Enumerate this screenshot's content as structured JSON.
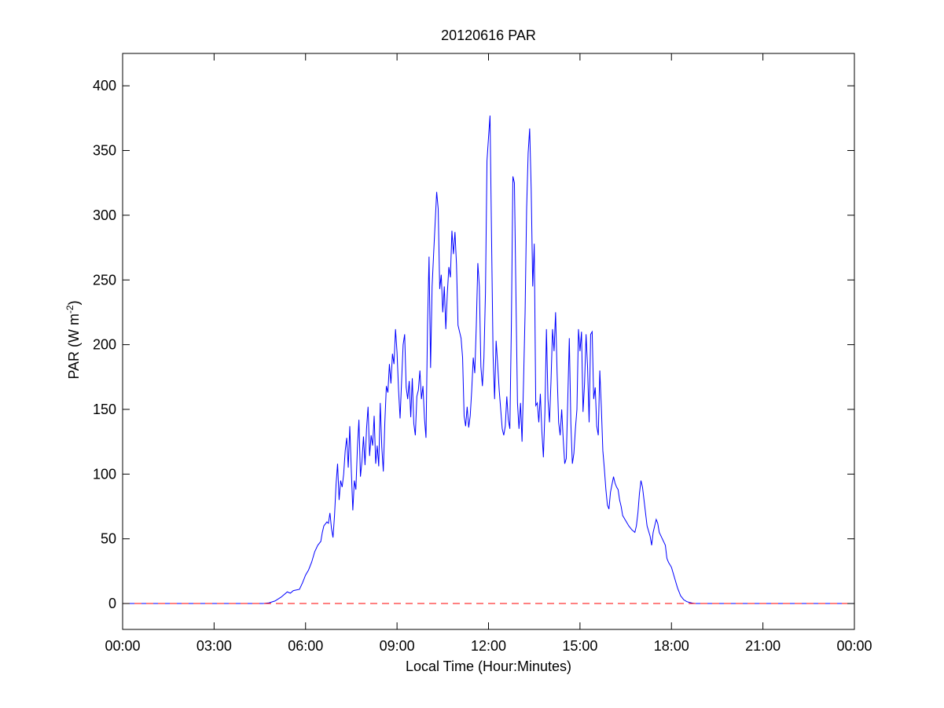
{
  "chart_data": {
    "type": "line",
    "title": "20120616 PAR",
    "xlabel": "Local Time (Hour:Minutes)",
    "ylabel": {
      "base": "PAR (W m",
      "superscript": "-2",
      "close": ")"
    },
    "xlim": [
      0,
      24
    ],
    "ylim": [
      -20,
      425
    ],
    "x_ticks": [
      {
        "value": 0,
        "label": "00:00"
      },
      {
        "value": 3,
        "label": "03:00"
      },
      {
        "value": 6,
        "label": "06:00"
      },
      {
        "value": 9,
        "label": "09:00"
      },
      {
        "value": 12,
        "label": "12:00"
      },
      {
        "value": 15,
        "label": "15:00"
      },
      {
        "value": 18,
        "label": "18:00"
      },
      {
        "value": 21,
        "label": "21:00"
      },
      {
        "value": 24,
        "label": "00:00"
      }
    ],
    "y_ticks": [
      {
        "value": 0,
        "label": "0"
      },
      {
        "value": 50,
        "label": "50"
      },
      {
        "value": 100,
        "label": "100"
      },
      {
        "value": 150,
        "label": "150"
      },
      {
        "value": 200,
        "label": "200"
      },
      {
        "value": 250,
        "label": "250"
      },
      {
        "value": 300,
        "label": "300"
      },
      {
        "value": 350,
        "label": "350"
      },
      {
        "value": 400,
        "label": "400"
      }
    ],
    "grid": false,
    "series": [
      {
        "color": "#0000ff",
        "style": "solid",
        "points": [
          [
            0,
            0
          ],
          [
            4.6,
            0
          ],
          [
            4.8,
            0.5
          ],
          [
            5.0,
            2
          ],
          [
            5.2,
            5
          ],
          [
            5.4,
            9
          ],
          [
            5.5,
            8
          ],
          [
            5.6,
            10
          ],
          [
            5.8,
            11
          ],
          [
            5.9,
            16
          ],
          [
            6.0,
            22
          ],
          [
            6.1,
            26
          ],
          [
            6.2,
            32
          ],
          [
            6.3,
            40
          ],
          [
            6.4,
            45
          ],
          [
            6.5,
            48
          ],
          [
            6.55,
            55
          ],
          [
            6.6,
            60
          ],
          [
            6.7,
            63
          ],
          [
            6.75,
            62
          ],
          [
            6.8,
            70
          ],
          [
            6.85,
            58
          ],
          [
            6.9,
            51
          ],
          [
            6.95,
            68
          ],
          [
            7.0,
            92
          ],
          [
            7.05,
            108
          ],
          [
            7.1,
            80
          ],
          [
            7.15,
            95
          ],
          [
            7.2,
            90
          ],
          [
            7.25,
            100
          ],
          [
            7.3,
            118
          ],
          [
            7.35,
            128
          ],
          [
            7.4,
            105
          ],
          [
            7.45,
            137
          ],
          [
            7.5,
            103
          ],
          [
            7.55,
            72
          ],
          [
            7.6,
            95
          ],
          [
            7.65,
            88
          ],
          [
            7.7,
            120
          ],
          [
            7.75,
            142
          ],
          [
            7.8,
            98
          ],
          [
            7.85,
            110
          ],
          [
            7.9,
            129
          ],
          [
            7.95,
            107
          ],
          [
            8.0,
            135
          ],
          [
            8.05,
            152
          ],
          [
            8.1,
            114
          ],
          [
            8.15,
            130
          ],
          [
            8.2,
            122
          ],
          [
            8.25,
            145
          ],
          [
            8.3,
            108
          ],
          [
            8.35,
            122
          ],
          [
            8.4,
            106
          ],
          [
            8.45,
            155
          ],
          [
            8.5,
            121
          ],
          [
            8.55,
            102
          ],
          [
            8.6,
            140
          ],
          [
            8.65,
            168
          ],
          [
            8.7,
            163
          ],
          [
            8.75,
            185
          ],
          [
            8.8,
            170
          ],
          [
            8.85,
            193
          ],
          [
            8.9,
            185
          ],
          [
            8.95,
            212
          ],
          [
            9.0,
            194
          ],
          [
            9.05,
            165
          ],
          [
            9.1,
            143
          ],
          [
            9.15,
            172
          ],
          [
            9.2,
            200
          ],
          [
            9.25,
            208
          ],
          [
            9.3,
            167
          ],
          [
            9.35,
            158
          ],
          [
            9.4,
            172
          ],
          [
            9.45,
            144
          ],
          [
            9.5,
            174
          ],
          [
            9.55,
            139
          ],
          [
            9.6,
            130
          ],
          [
            9.65,
            160
          ],
          [
            9.7,
            165
          ],
          [
            9.75,
            180
          ],
          [
            9.8,
            158
          ],
          [
            9.85,
            168
          ],
          [
            9.9,
            143
          ],
          [
            9.95,
            128
          ],
          [
            10.0,
            215
          ],
          [
            10.05,
            268
          ],
          [
            10.1,
            182
          ],
          [
            10.15,
            245
          ],
          [
            10.2,
            270
          ],
          [
            10.3,
            318
          ],
          [
            10.35,
            305
          ],
          [
            10.4,
            243
          ],
          [
            10.45,
            254
          ],
          [
            10.5,
            225
          ],
          [
            10.55,
            245
          ],
          [
            10.6,
            212
          ],
          [
            10.65,
            240
          ],
          [
            10.7,
            260
          ],
          [
            10.75,
            252
          ],
          [
            10.8,
            288
          ],
          [
            10.85,
            270
          ],
          [
            10.9,
            287
          ],
          [
            10.95,
            262
          ],
          [
            11.0,
            215
          ],
          [
            11.1,
            205
          ],
          [
            11.15,
            190
          ],
          [
            11.2,
            145
          ],
          [
            11.25,
            137
          ],
          [
            11.3,
            152
          ],
          [
            11.35,
            136
          ],
          [
            11.4,
            145
          ],
          [
            11.45,
            165
          ],
          [
            11.5,
            190
          ],
          [
            11.55,
            178
          ],
          [
            11.6,
            215
          ],
          [
            11.65,
            263
          ],
          [
            11.7,
            245
          ],
          [
            11.75,
            183
          ],
          [
            11.8,
            168
          ],
          [
            11.85,
            190
          ],
          [
            11.9,
            240
          ],
          [
            11.95,
            342
          ],
          [
            12.0,
            360
          ],
          [
            12.05,
            377
          ],
          [
            12.1,
            282
          ],
          [
            12.15,
            192
          ],
          [
            12.2,
            158
          ],
          [
            12.25,
            203
          ],
          [
            12.3,
            185
          ],
          [
            12.35,
            165
          ],
          [
            12.4,
            150
          ],
          [
            12.45,
            135
          ],
          [
            12.5,
            130
          ],
          [
            12.55,
            137
          ],
          [
            12.6,
            160
          ],
          [
            12.65,
            142
          ],
          [
            12.7,
            135
          ],
          [
            12.75,
            215
          ],
          [
            12.8,
            330
          ],
          [
            12.85,
            325
          ],
          [
            12.9,
            238
          ],
          [
            12.95,
            155
          ],
          [
            13.0,
            135
          ],
          [
            13.05,
            155
          ],
          [
            13.1,
            125
          ],
          [
            13.15,
            172
          ],
          [
            13.2,
            225
          ],
          [
            13.25,
            305
          ],
          [
            13.3,
            348
          ],
          [
            13.35,
            367
          ],
          [
            13.4,
            320
          ],
          [
            13.45,
            245
          ],
          [
            13.5,
            278
          ],
          [
            13.55,
            153
          ],
          [
            13.6,
            155
          ],
          [
            13.65,
            140
          ],
          [
            13.7,
            162
          ],
          [
            13.75,
            133
          ],
          [
            13.8,
            113
          ],
          [
            13.85,
            148
          ],
          [
            13.9,
            212
          ],
          [
            13.95,
            158
          ],
          [
            14.0,
            140
          ],
          [
            14.05,
            172
          ],
          [
            14.1,
            212
          ],
          [
            14.15,
            195
          ],
          [
            14.2,
            225
          ],
          [
            14.25,
            178
          ],
          [
            14.3,
            140
          ],
          [
            14.35,
            130
          ],
          [
            14.4,
            150
          ],
          [
            14.45,
            127
          ],
          [
            14.5,
            108
          ],
          [
            14.55,
            112
          ],
          [
            14.6,
            158
          ],
          [
            14.65,
            205
          ],
          [
            14.7,
            140
          ],
          [
            14.75,
            108
          ],
          [
            14.8,
            116
          ],
          [
            14.85,
            135
          ],
          [
            14.9,
            150
          ],
          [
            14.95,
            212
          ],
          [
            15.0,
            195
          ],
          [
            15.05,
            210
          ],
          [
            15.1,
            148
          ],
          [
            15.15,
            170
          ],
          [
            15.2,
            208
          ],
          [
            15.25,
            182
          ],
          [
            15.3,
            140
          ],
          [
            15.35,
            208
          ],
          [
            15.4,
            210
          ],
          [
            15.45,
            158
          ],
          [
            15.5,
            167
          ],
          [
            15.55,
            137
          ],
          [
            15.6,
            130
          ],
          [
            15.65,
            180
          ],
          [
            15.7,
            152
          ],
          [
            15.75,
            118
          ],
          [
            15.8,
            104
          ],
          [
            15.85,
            88
          ],
          [
            15.9,
            76
          ],
          [
            15.95,
            73
          ],
          [
            16.0,
            86
          ],
          [
            16.05,
            92
          ],
          [
            16.1,
            98
          ],
          [
            16.15,
            93
          ],
          [
            16.2,
            90
          ],
          [
            16.25,
            88
          ],
          [
            16.3,
            80
          ],
          [
            16.35,
            75
          ],
          [
            16.4,
            68
          ],
          [
            16.5,
            64
          ],
          [
            16.6,
            60
          ],
          [
            16.7,
            57
          ],
          [
            16.8,
            55
          ],
          [
            16.85,
            60
          ],
          [
            16.9,
            70
          ],
          [
            16.95,
            85
          ],
          [
            17.0,
            95
          ],
          [
            17.05,
            90
          ],
          [
            17.1,
            80
          ],
          [
            17.15,
            70
          ],
          [
            17.2,
            60
          ],
          [
            17.3,
            52
          ],
          [
            17.35,
            45
          ],
          [
            17.4,
            55
          ],
          [
            17.5,
            65
          ],
          [
            17.55,
            62
          ],
          [
            17.6,
            55
          ],
          [
            17.7,
            50
          ],
          [
            17.8,
            45
          ],
          [
            17.85,
            35
          ],
          [
            17.9,
            32
          ],
          [
            18.0,
            28
          ],
          [
            18.1,
            20
          ],
          [
            18.2,
            12
          ],
          [
            18.3,
            6
          ],
          [
            18.4,
            3
          ],
          [
            18.5,
            1.5
          ],
          [
            18.6,
            0.8
          ],
          [
            18.7,
            0.3
          ],
          [
            18.8,
            0
          ],
          [
            24,
            0
          ]
        ]
      },
      {
        "color": "#ff0000",
        "style": "dashed",
        "points": [
          [
            0,
            0
          ],
          [
            24,
            0
          ]
        ]
      }
    ]
  }
}
